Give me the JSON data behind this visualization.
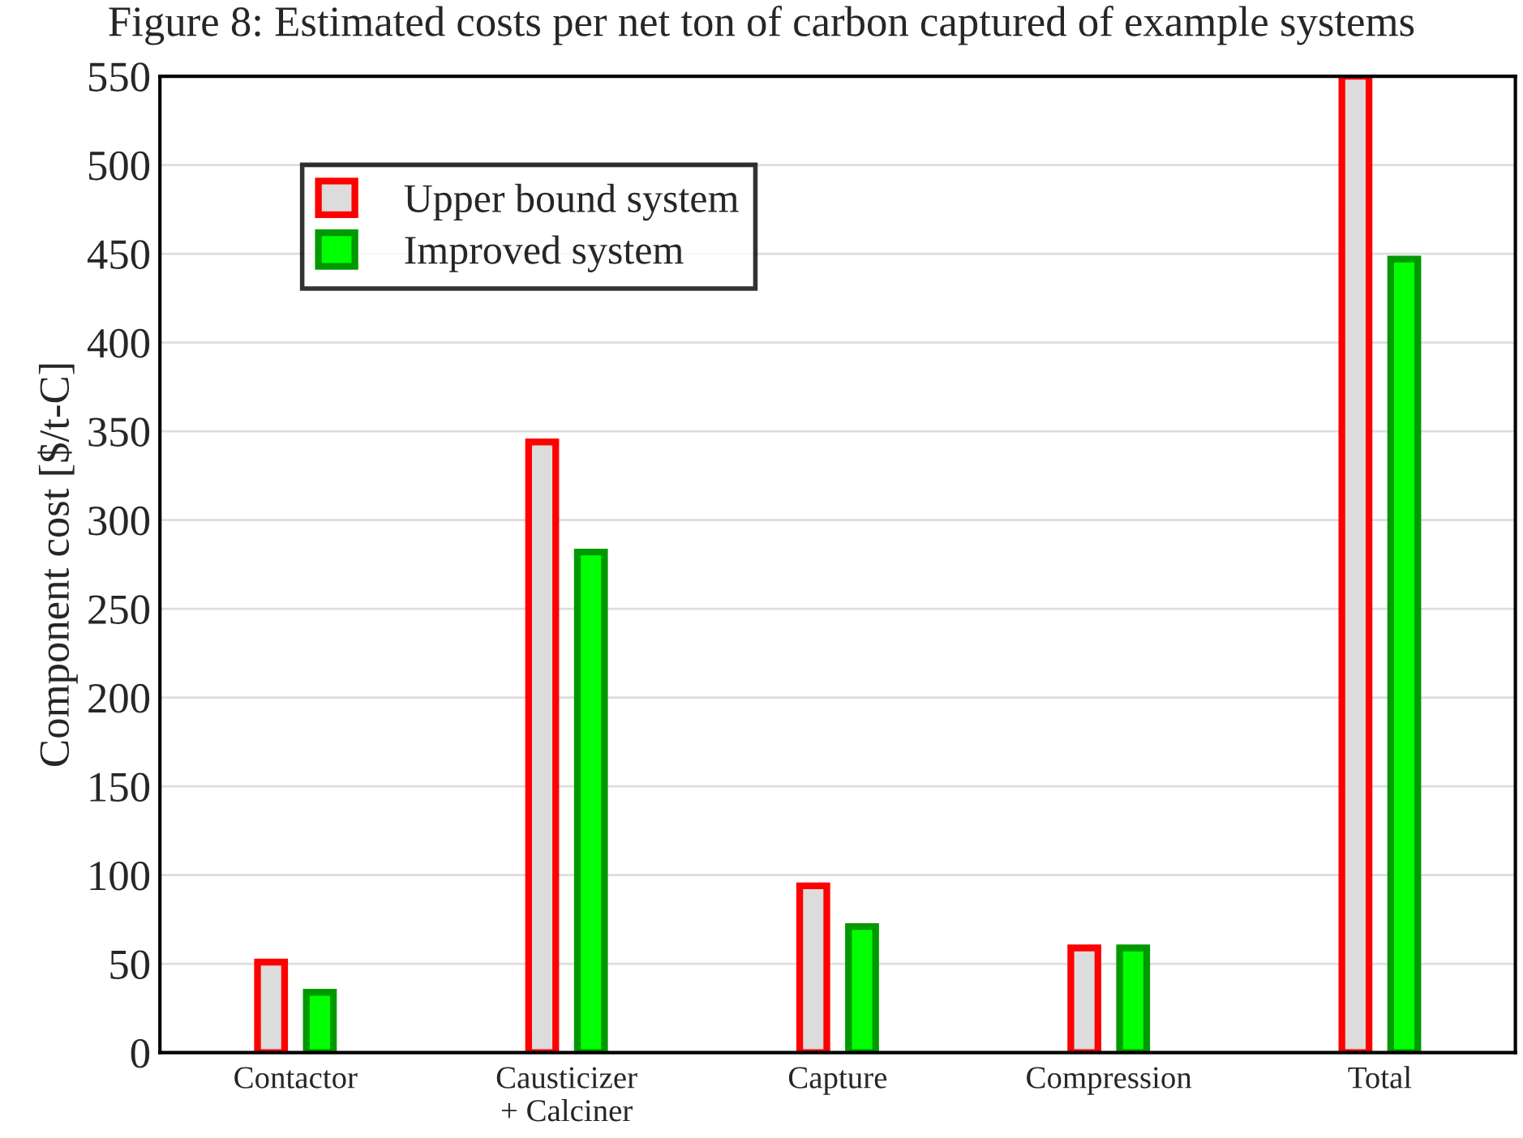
{
  "chart_data": {
    "type": "bar",
    "title": "Figure 8: Estimated costs per net ton of carbon captured of example systems",
    "ylabel": "Component cost [$/t-C]",
    "categories": [
      "Contactor",
      "Causticizer\n+ Calciner",
      "Capture",
      "Compression",
      "Total"
    ],
    "series": [
      {
        "name": "Upper bound system",
        "color": "#dcdcdc",
        "values": [
          51,
          344,
          94,
          59,
          550
        ]
      },
      {
        "name": "Improved system",
        "color": "#00ff00",
        "values": [
          34,
          282,
          71,
          59,
          447
        ]
      }
    ],
    "ylim": [
      0,
      550
    ],
    "yticks": [
      0,
      50,
      100,
      150,
      200,
      250,
      300,
      350,
      400,
      450,
      500,
      550
    ],
    "grid": "y",
    "legend": "top left"
  }
}
